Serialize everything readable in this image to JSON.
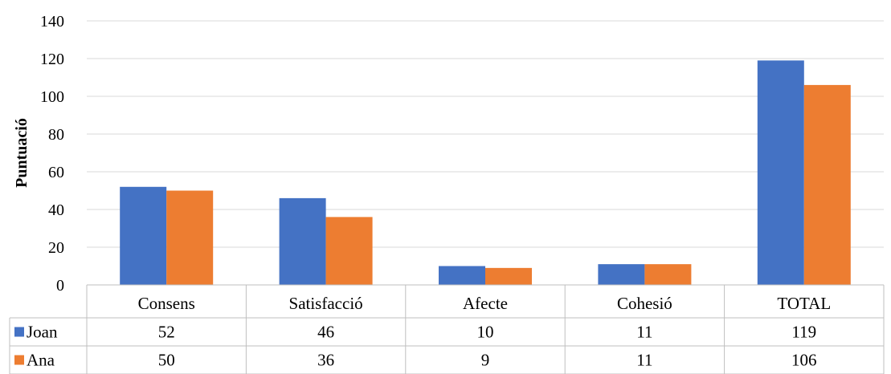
{
  "chart_data": {
    "type": "bar",
    "title": "",
    "xlabel": "",
    "ylabel": "Puntuació",
    "ylim": [
      0,
      140
    ],
    "yticks": [
      0,
      20,
      40,
      60,
      80,
      100,
      120,
      140
    ],
    "grid": true,
    "legend": "data-table",
    "categories": [
      "Consens",
      "Satisfacció",
      "Afecte",
      "Cohesió",
      "TOTAL"
    ],
    "series": [
      {
        "name": "Joan",
        "color": "#4472C4",
        "values": [
          52,
          46,
          10,
          11,
          119
        ]
      },
      {
        "name": "Ana",
        "color": "#ED7D31",
        "values": [
          50,
          36,
          9,
          11,
          106
        ]
      }
    ]
  }
}
